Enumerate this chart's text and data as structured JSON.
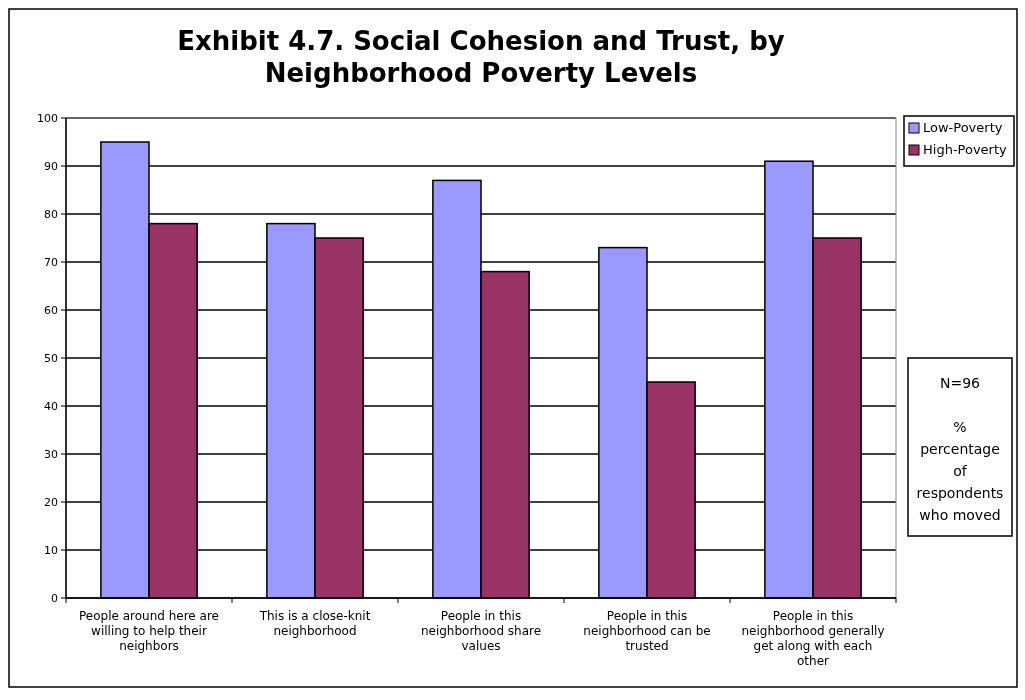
{
  "chart_data": {
    "type": "bar",
    "title": "Exhibit 4.7.  Social Cohesion and Trust, by Neighborhood Poverty Levels",
    "categories": [
      "People around here are willing to help their neighbors",
      "This is a close-knit neighborhood",
      "People in this neighborhood share values",
      "People in this neighborhood can be trusted",
      "People in this neighborhood generally get along with each other"
    ],
    "series": [
      {
        "name": "Low-Poverty",
        "color": "#9999ff",
        "values": [
          95,
          78,
          87,
          73,
          91
        ]
      },
      {
        "name": "High-Poverty",
        "color": "#993366",
        "values": [
          78,
          75,
          68,
          45,
          75
        ]
      }
    ],
    "ylim": [
      0,
      100
    ],
    "yticks": [
      0,
      10,
      20,
      30,
      40,
      50,
      60,
      70,
      80,
      90,
      100
    ],
    "grid": "y",
    "legend": "top right",
    "annotations": [
      "N=96",
      "% percentage of respondents who moved"
    ]
  }
}
